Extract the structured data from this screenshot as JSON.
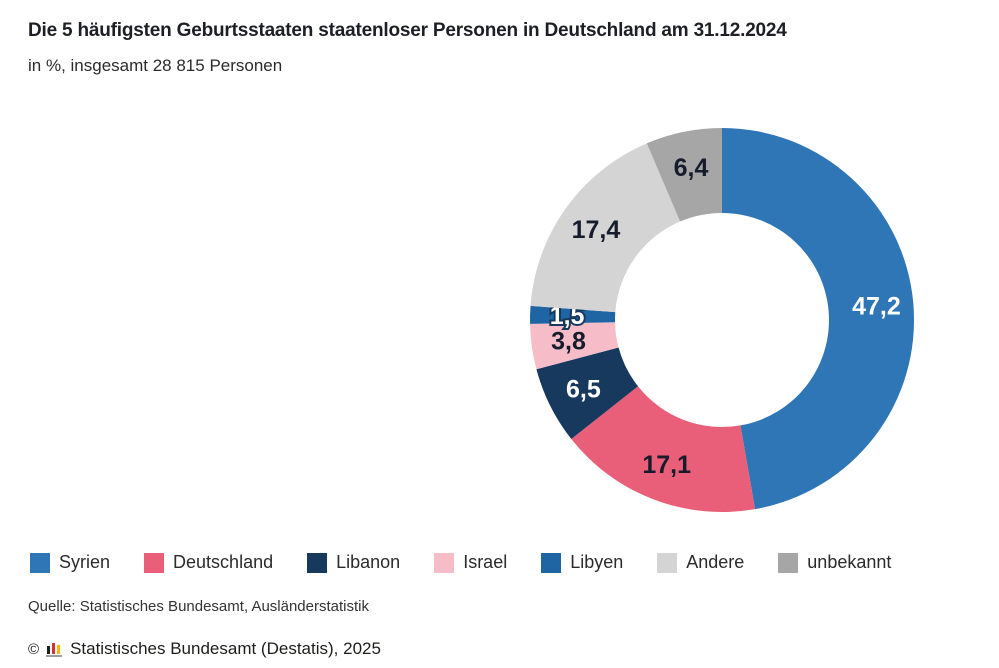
{
  "header": {
    "title": "Die 5 häufigsten Geburtsstaaten staatenloser Personen in Deutschland am 31.12.2024",
    "subtitle": "in %, insgesamt 28 815 Personen"
  },
  "chart_data": {
    "type": "pie",
    "subtype": "donut",
    "unit": "%",
    "total_persons_label": "28 815 Personen",
    "start_angle_deg": 0,
    "direction": "clockwise",
    "legend_position": "bottom",
    "segments": [
      {
        "label": "Syrien",
        "value": 47.2,
        "display": "47,2",
        "color": "#2e76b6",
        "text_color": "#ffffff"
      },
      {
        "label": "Deutschland",
        "value": 17.1,
        "display": "17,1",
        "color": "#e95e78",
        "text_color": "#161c2b"
      },
      {
        "label": "Libanon",
        "value": 6.5,
        "display": "6,5",
        "color": "#17395d",
        "text_color": "#ffffff"
      },
      {
        "label": "Israel",
        "value": 3.8,
        "display": "3,8",
        "color": "#f6bcc8",
        "text_color": "#161c2b"
      },
      {
        "label": "Libyen",
        "value": 1.5,
        "display": "1,5",
        "color": "#1f64a3",
        "text_color": "#ffffff",
        "label_outline": "#17395d"
      },
      {
        "label": "Andere",
        "value": 17.4,
        "display": "17,4",
        "color": "#d4d4d4",
        "text_color": "#161c2b"
      },
      {
        "label": "unbekannt",
        "value": 6.4,
        "display": "6,4",
        "color": "#a6a6a6",
        "text_color": "#161c2b"
      }
    ]
  },
  "footer": {
    "source": "Quelle: Statistisches Bundesamt, Ausländerstatistik",
    "copyright_prefix": "©",
    "copyright_text": "Statistisches Bundesamt (Destatis), 2025",
    "logo": {
      "bar_colors": [
        "#1d1d1b",
        "#d13239",
        "#f5b800"
      ],
      "base_color": "#9d9d9d"
    }
  }
}
